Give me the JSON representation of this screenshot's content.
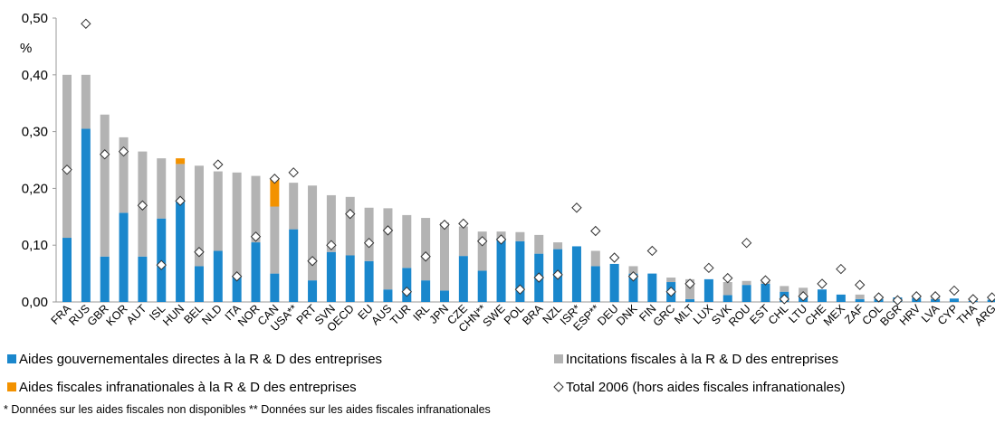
{
  "chart_data": {
    "type": "bar",
    "y_label": "%",
    "categories": [
      "FRA",
      "RUS",
      "GBR",
      "KOR",
      "AUT",
      "ISL",
      "HUN",
      "BEL",
      "NLD",
      "ITA",
      "NOR",
      "CAN",
      "USA**",
      "PRT",
      "SVN",
      "OECD",
      "EU",
      "AUS",
      "TUR",
      "IRL",
      "JPN",
      "CZE",
      "CHN**",
      "SWE",
      "POL",
      "BRA",
      "NZL",
      "ISR*",
      "ESP**",
      "DEU",
      "DNK",
      "FIN",
      "GRC",
      "MLT",
      "LUX",
      "SVK",
      "ROU",
      "EST",
      "CHL",
      "LTU",
      "CHE",
      "MEX",
      "ZAF",
      "COL",
      "BGR",
      "HRV",
      "LVA",
      "CYP",
      "THA",
      "ARG"
    ],
    "series": [
      {
        "name": "Aides gouvernementales directes à la R & D des entreprises",
        "color": "#1a87cc",
        "mark": "bar",
        "values": [
          0.113,
          0.305,
          0.08,
          0.157,
          0.08,
          0.147,
          0.18,
          0.063,
          0.09,
          0.045,
          0.105,
          0.05,
          0.128,
          0.038,
          0.088,
          0.082,
          0.072,
          0.022,
          0.06,
          0.038,
          0.02,
          0.081,
          0.055,
          0.112,
          0.107,
          0.085,
          0.093,
          0.098,
          0.063,
          0.067,
          0.05,
          0.05,
          0.035,
          0.005,
          0.04,
          0.012,
          0.03,
          0.032,
          0.018,
          0.01,
          0.022,
          0.013,
          0.005,
          0.005,
          0.008,
          0.007,
          0.005,
          0.006,
          0.002,
          0.004
        ]
      },
      {
        "name": "Incitations fiscales à la R & D des entreprises",
        "color": "#b3b3b3",
        "mark": "bar",
        "values": [
          0.287,
          0.095,
          0.25,
          0.133,
          0.185,
          0.106,
          0.063,
          0.177,
          0.14,
          0.183,
          0.117,
          0.118,
          0.082,
          0.167,
          0.1,
          0.103,
          0.094,
          0.143,
          0.093,
          0.11,
          0.12,
          0.052,
          0.069,
          0.012,
          0.016,
          0.033,
          0.012,
          0,
          0.027,
          0,
          0.013,
          0,
          0.008,
          0.035,
          0,
          0.023,
          0.007,
          0.004,
          0.01,
          0.015,
          0,
          0,
          0.008,
          0.005,
          0,
          0.002,
          0.003,
          0,
          0.004,
          0
        ]
      },
      {
        "name": "Aides fiscales infranationales à la R & D des entreprises",
        "color": "#f39200",
        "mark": "bar",
        "values": [
          0,
          0,
          0,
          0,
          0,
          0,
          0.01,
          0,
          0,
          0,
          0,
          0.048,
          0,
          0,
          0,
          0,
          0,
          0,
          0,
          0,
          0,
          0,
          0,
          0,
          0,
          0,
          0,
          0,
          0,
          0,
          0,
          0,
          0,
          0,
          0,
          0,
          0,
          0,
          0,
          0,
          0,
          0,
          0,
          0,
          0,
          0,
          0,
          0,
          0,
          0
        ]
      },
      {
        "name": "Total 2006 (hors aides fiscales infranationales)",
        "color": "#333333",
        "mark": "diamond",
        "values": [
          0.233,
          0.49,
          0.26,
          0.265,
          0.17,
          0.065,
          0.178,
          0.088,
          0.242,
          0.045,
          0.115,
          0.217,
          0.228,
          0.072,
          0.1,
          0.155,
          0.104,
          0.126,
          0.018,
          0.08,
          0.136,
          0.138,
          0.107,
          0.11,
          0.022,
          0.043,
          0.048,
          0.166,
          0.125,
          0.078,
          0.045,
          0.09,
          0.018,
          0.032,
          0.06,
          0.042,
          0.104,
          0.038,
          0.005,
          0.01,
          0.032,
          0.058,
          0.03,
          0.008,
          0.003,
          0.01,
          0.01,
          0.02,
          0.005,
          0.008
        ]
      }
    ],
    "ylim": [
      0,
      0.5
    ],
    "yticks": [
      {
        "value": 0,
        "label": "0,00"
      },
      {
        "value": 0.1,
        "label": "0,10"
      },
      {
        "value": 0.2,
        "label": "0,20"
      },
      {
        "value": 0.3,
        "label": "0,30"
      },
      {
        "value": 0.4,
        "label": "0,40"
      },
      {
        "value": 0.5,
        "label": "0,50"
      }
    ],
    "footnote": "* Données sur les aides fiscales non disponibles ** Données sur les aides fiscales infranationales"
  }
}
